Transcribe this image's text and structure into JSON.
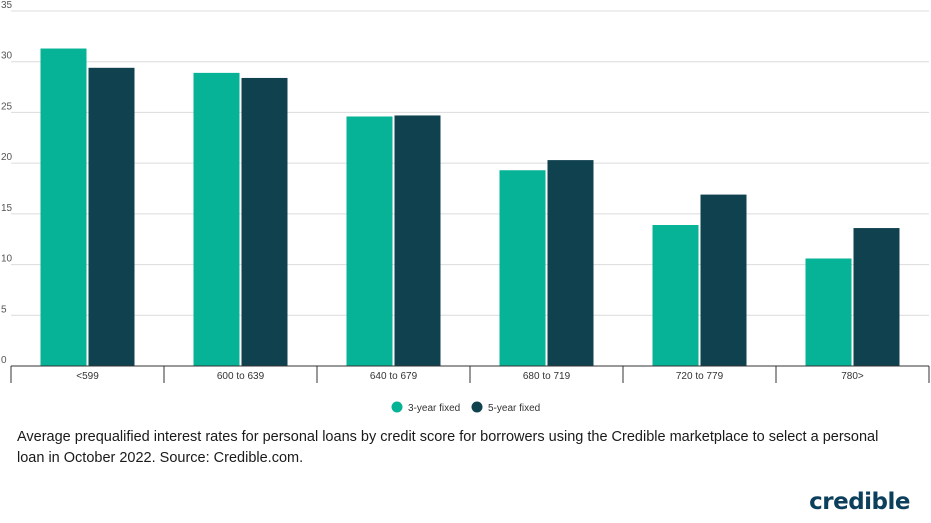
{
  "chart_data": {
    "type": "bar",
    "categories": [
      "<599",
      "600 to 639",
      "640 to 679",
      "680 to 719",
      "720 to 779",
      "780>"
    ],
    "series": [
      {
        "name": "3-year fixed",
        "color": "#06b397",
        "values": [
          31.3,
          28.9,
          24.6,
          19.3,
          13.9,
          10.6
        ]
      },
      {
        "name": "5-year fixed",
        "color": "#0f414f",
        "values": [
          29.4,
          28.4,
          24.7,
          20.3,
          16.9,
          13.6
        ]
      }
    ],
    "yticks": [
      "0",
      "5",
      "10",
      "15",
      "20",
      "25",
      "30",
      "35"
    ],
    "ylim": [
      0,
      35
    ],
    "grid": true,
    "legend_position": "bottom-center",
    "title": "",
    "xlabel": "",
    "ylabel": ""
  },
  "caption": "Average prequalified interest rates for personal loans by credit score for borrowers using the Credible marketplace to select a personal loan in October 2022. Source: Credible.com.",
  "brand": {
    "logo_text": "credible",
    "color": "#0b3f5c"
  }
}
